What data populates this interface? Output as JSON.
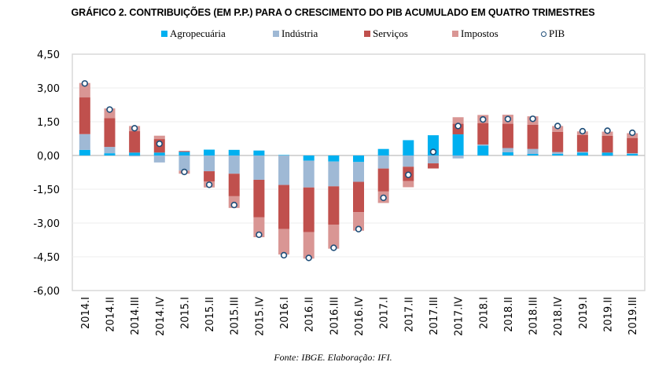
{
  "chart_data": {
    "type": "bar",
    "stacked": true,
    "title": "GRÁFICO 2. CONTRIBUIÇÕES (EM P.P.) PARA O CRESCIMENTO DO PIB ACUMULADO EM QUATRO TRIMESTRES",
    "source": "Fonte: IBGE. Elaboração: IFI.",
    "xlabel": "",
    "ylabel": "",
    "ylim": [
      -6.0,
      4.5
    ],
    "yticks": [
      4.5,
      3.0,
      1.5,
      0.0,
      -1.5,
      -3.0,
      -4.5,
      -6.0
    ],
    "ytick_labels": [
      "4,50",
      "3,00",
      "1,50",
      "0,00",
      "-1,50",
      "-3,00",
      "-4,50",
      "-6,00"
    ],
    "grid": true,
    "legend_position": "top-center",
    "categories": [
      "2014.I",
      "2014.II",
      "2014.III",
      "2014.IV",
      "2015.I",
      "2015.II",
      "2015.III",
      "2015.IV",
      "2016.I",
      "2016.II",
      "2016.III",
      "2016.IV",
      "2017.I",
      "2017.II",
      "2017.III",
      "2017.IV",
      "2018.I",
      "2018.II",
      "2018.III",
      "2018.IV",
      "2019.I",
      "2019.II",
      "2019.III"
    ],
    "series": [
      {
        "name": "Agropecuária",
        "kind": "bar",
        "color": "#00b0f0",
        "values": [
          0.25,
          0.1,
          0.13,
          0.13,
          0.16,
          0.26,
          0.25,
          0.22,
          0.02,
          -0.23,
          -0.27,
          -0.29,
          0.29,
          0.68,
          0.9,
          0.94,
          0.44,
          0.14,
          0.07,
          0.07,
          0.13,
          0.13,
          0.08
        ]
      },
      {
        "name": "Indústria",
        "kind": "bar",
        "color": "#9fb9d5",
        "values": [
          0.7,
          0.28,
          -0.04,
          -0.31,
          -0.67,
          -0.7,
          -0.81,
          -1.08,
          -1.31,
          -1.19,
          -1.1,
          -0.88,
          -0.58,
          -0.5,
          -0.35,
          -0.13,
          0.05,
          0.19,
          0.22,
          0.08,
          0.03,
          -0.03,
          0.02
        ]
      },
      {
        "name": "Serviços",
        "kind": "bar",
        "color": "#c0504d",
        "values": [
          1.63,
          1.28,
          0.95,
          0.6,
          0.04,
          -0.45,
          -1.0,
          -1.67,
          -1.96,
          -1.98,
          -1.7,
          -1.35,
          -1.02,
          -0.64,
          -0.21,
          0.47,
          0.94,
          1.08,
          1.08,
          0.9,
          0.75,
          0.75,
          0.68
        ]
      },
      {
        "name": "Impostos",
        "kind": "bar",
        "color": "#d99694",
        "values": [
          0.64,
          0.43,
          0.23,
          0.15,
          -0.14,
          -0.27,
          -0.52,
          -0.88,
          -1.13,
          -1.18,
          -1.07,
          -0.82,
          -0.51,
          -0.27,
          -0.03,
          0.29,
          0.37,
          0.4,
          0.37,
          0.26,
          0.16,
          0.18,
          0.21
        ]
      },
      {
        "name": "PIB",
        "kind": "marker",
        "color": "#1f4e79",
        "values": [
          3.2,
          2.04,
          1.21,
          0.52,
          -0.73,
          -1.3,
          -2.2,
          -3.52,
          -4.43,
          -4.55,
          -4.1,
          -3.27,
          -1.88,
          -0.86,
          0.16,
          1.31,
          1.6,
          1.62,
          1.63,
          1.31,
          1.08,
          1.1,
          1.01
        ]
      }
    ]
  }
}
